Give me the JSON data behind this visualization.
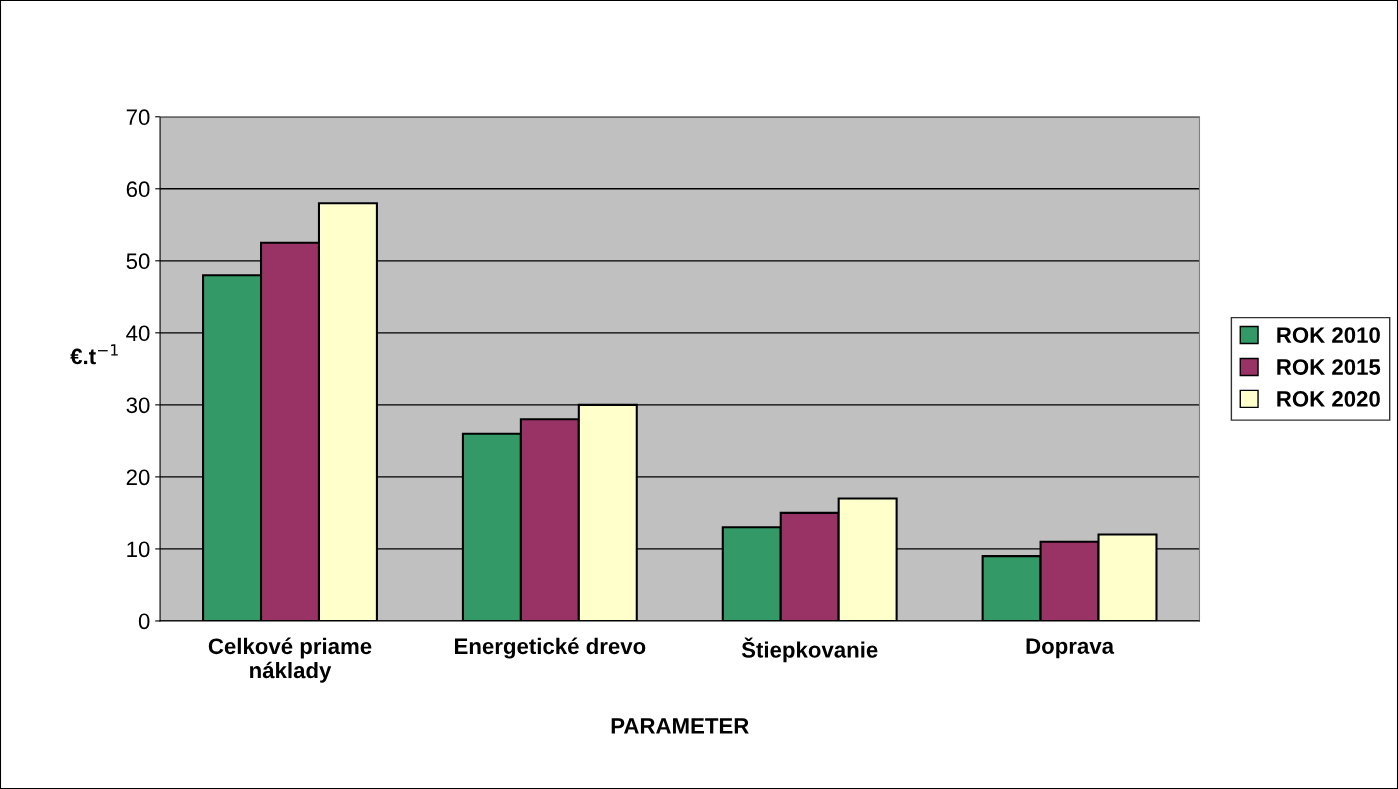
{
  "chart_data": {
    "type": "bar",
    "xlabel": "PARAMETER",
    "ylabel": "€.t$^{−1}$",
    "categories": [
      "Celkové priame\nnáklady",
      "Energetické drevo",
      "Štiepkovanie",
      "Doprava"
    ],
    "series": [
      {
        "name": "ROK 2010",
        "color": "#339966",
        "values": [
          48,
          26,
          13,
          9
        ]
      },
      {
        "name": "ROK 2015",
        "color": "#993366",
        "values": [
          52.5,
          28,
          15,
          11
        ]
      },
      {
        "name": "ROK 2020",
        "color": "#ffffcc",
        "values": [
          58,
          30,
          17,
          12
        ]
      }
    ],
    "ylim": [
      0,
      70
    ],
    "yticks": [
      0,
      10,
      20,
      30,
      40,
      50,
      60,
      70
    ],
    "grid": "y",
    "legend": "right"
  }
}
